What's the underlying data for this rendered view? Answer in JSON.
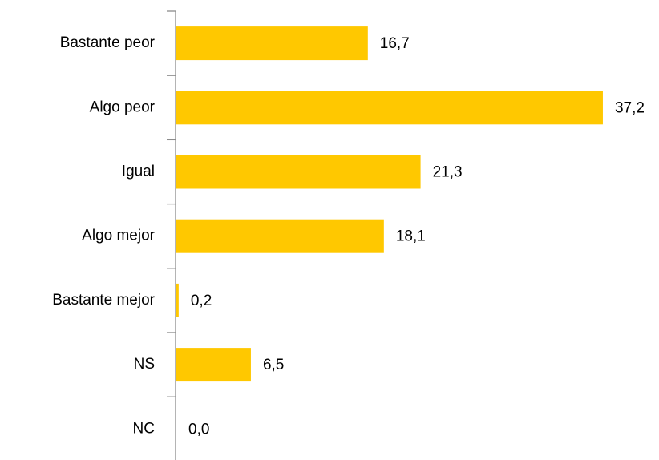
{
  "chart_data": {
    "type": "bar",
    "orientation": "horizontal",
    "categories": [
      "Bastante peor",
      "Algo peor",
      "Igual",
      "Algo mejor",
      "Bastante mejor",
      "NS",
      "NC"
    ],
    "values": [
      16.7,
      37.2,
      21.3,
      18.1,
      0.2,
      6.5,
      0.0
    ],
    "value_labels": [
      "16,7",
      "37,2",
      "21,3",
      "18,1",
      "0,2",
      "6,5",
      "0,0"
    ],
    "color": "#ffc800"
  }
}
